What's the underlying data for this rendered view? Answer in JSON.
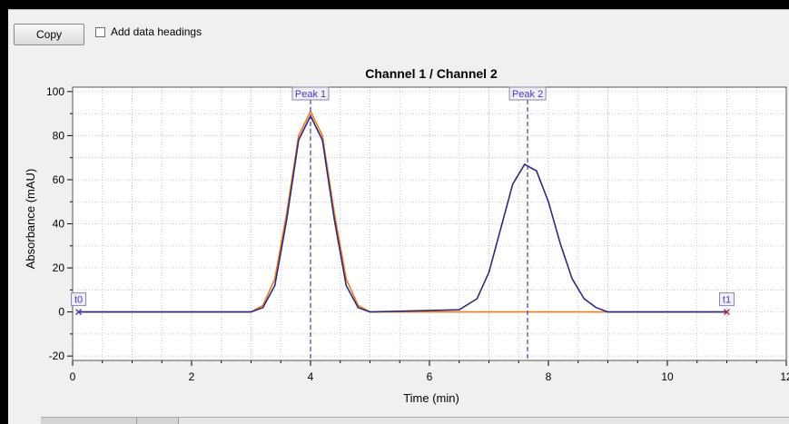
{
  "toolbar": {
    "copy_label": "Copy",
    "add_headings_label": "Add data headings",
    "add_headings_checked": false
  },
  "colors": {
    "channel1": "#f07a1e",
    "channel2": "#2a2a80",
    "marker": "#5533cc",
    "t1_marker": "#aa2244"
  },
  "chart_data": {
    "type": "line",
    "title": "Channel 1 / Channel 2",
    "xlabel": "Time (min)",
    "ylabel": "Absorbance (mAU)",
    "xlim": [
      0,
      12
    ],
    "ylim": [
      -22,
      102
    ],
    "x_ticks": [
      0,
      2,
      4,
      6,
      8,
      10,
      12
    ],
    "y_ticks": [
      -20,
      0,
      20,
      40,
      60,
      80,
      100
    ],
    "grid": true,
    "series": [
      {
        "x": [
          0.1,
          3.0,
          3.2,
          3.4,
          3.6,
          3.8,
          4.0,
          4.2,
          4.4,
          4.6,
          4.8,
          5.0,
          6.5,
          6.8,
          7.0,
          7.2,
          7.4,
          7.6,
          7.8,
          8.0,
          8.2,
          8.4,
          8.6,
          8.8,
          9.0,
          11.0
        ],
        "y": [
          0,
          0,
          3,
          15,
          45,
          80,
          91,
          80,
          45,
          15,
          3,
          0,
          0,
          0,
          0,
          0,
          0,
          0,
          0,
          0,
          0,
          0,
          0,
          0,
          0,
          0
        ]
      },
      {
        "x": [
          0.1,
          3.0,
          3.2,
          3.4,
          3.6,
          3.8,
          4.0,
          4.2,
          4.4,
          4.6,
          4.8,
          5.0,
          6.5,
          6.8,
          7.0,
          7.2,
          7.4,
          7.6,
          7.8,
          8.0,
          8.2,
          8.4,
          8.6,
          8.8,
          9.0,
          11.0
        ],
        "y": [
          0,
          0,
          2,
          12,
          42,
          78,
          89,
          78,
          42,
          12,
          2,
          0,
          1,
          6,
          18,
          38,
          58,
          67,
          64,
          50,
          31,
          15,
          6,
          2,
          0,
          0
        ]
      }
    ],
    "annotations": [
      {
        "label": "Peak 1",
        "x": 4.0
      },
      {
        "label": "Peak 2",
        "x": 7.65
      }
    ],
    "endpoints": [
      {
        "label": "t0",
        "x": 0.1,
        "y": 0
      },
      {
        "label": "t1",
        "x": 11.0,
        "y": 0
      }
    ]
  }
}
